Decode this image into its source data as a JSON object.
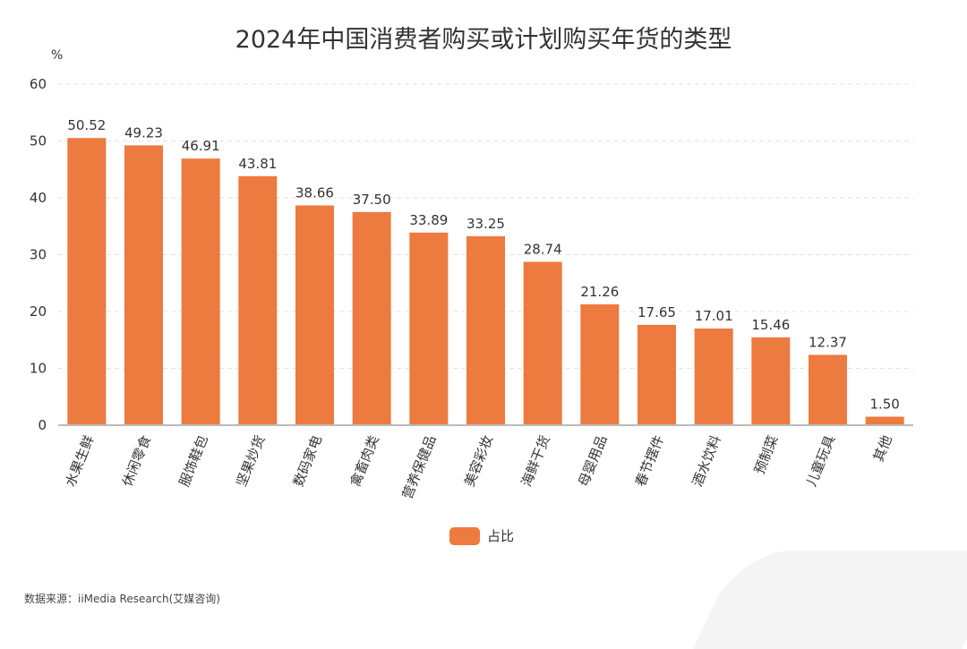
{
  "chart_data": {
    "type": "bar",
    "title": "2024年中国消费者购买或计划购买年货的类型",
    "ylabel": "%",
    "ylim": [
      0,
      60
    ],
    "yticks": [
      0,
      10,
      20,
      30,
      40,
      50,
      60
    ],
    "grid": true,
    "legend_position": "bottom",
    "categories": [
      "水果生鲜",
      "休闲零食",
      "服饰鞋包",
      "坚果炒货",
      "数码家电",
      "禽畜肉类",
      "营养保健品",
      "美容彩妆",
      "海鲜干货",
      "母婴用品",
      "春节摆件",
      "酒水饮料",
      "预制菜",
      "儿童玩具",
      "其他"
    ],
    "series": [
      {
        "name": "占比",
        "color": "#ED7A3F",
        "values": [
          50.52,
          49.23,
          46.91,
          43.81,
          38.66,
          37.5,
          33.89,
          33.25,
          28.74,
          21.26,
          17.65,
          17.01,
          15.46,
          12.37,
          1.5
        ]
      }
    ]
  },
  "source": "数据来源：iiMedia Research(艾媒咨询)"
}
